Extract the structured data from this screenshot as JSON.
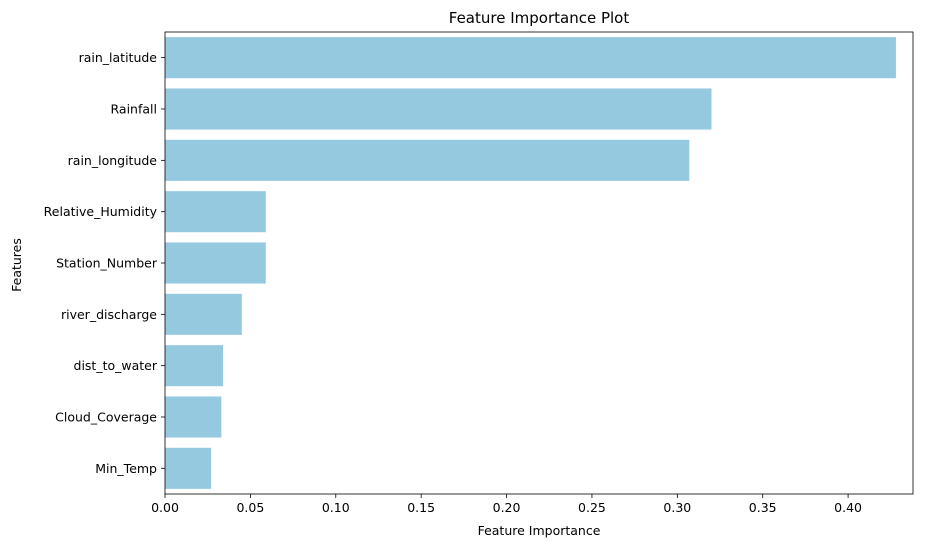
{
  "chart_data": {
    "type": "bar",
    "orientation": "horizontal",
    "title": "Feature Importance Plot",
    "xlabel": "Feature Importance",
    "ylabel": "Features",
    "categories": [
      "rain_latitude",
      "Rainfall",
      "rain_longitude",
      "Relative_Humidity",
      "Station_Number",
      "river_discharge",
      "dist_to_water",
      "Cloud_Coverage",
      "Min_Temp"
    ],
    "values": [
      0.428,
      0.32,
      0.307,
      0.059,
      0.059,
      0.045,
      0.034,
      0.033,
      0.027
    ],
    "xlim": [
      0,
      0.438
    ],
    "xticks": [
      0.0,
      0.05,
      0.1,
      0.15,
      0.2,
      0.25,
      0.3,
      0.35,
      0.4
    ],
    "xtick_labels": [
      "0.00",
      "0.05",
      "0.10",
      "0.15",
      "0.20",
      "0.25",
      "0.30",
      "0.35",
      "0.40"
    ],
    "grid": false,
    "bar_color": "#95c9df"
  }
}
